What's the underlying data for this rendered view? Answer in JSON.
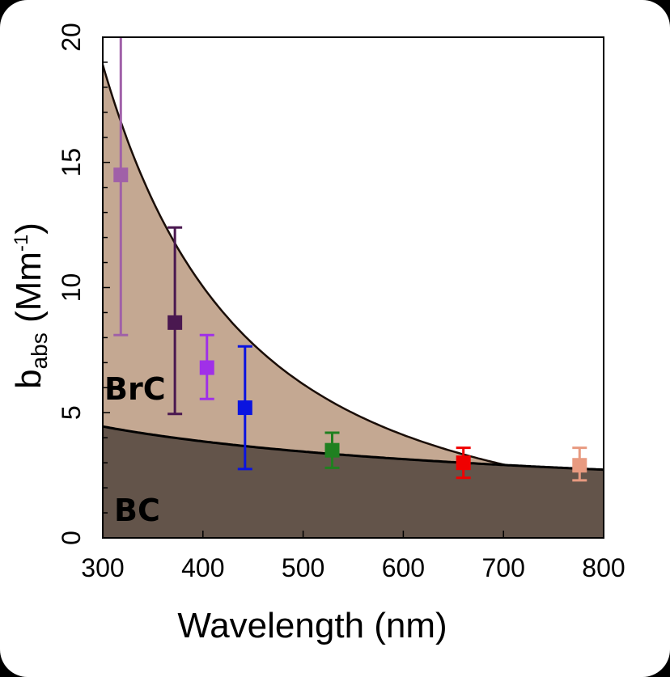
{
  "chart_data": {
    "type": "scatter",
    "xlabel": "Wavelength (nm)",
    "ylabel": {
      "base": "b",
      "sub": "abs",
      "unit_open": " (Mm",
      "sup": "-1",
      "unit_close": ")"
    },
    "xlim": [
      300,
      800
    ],
    "ylim": [
      0,
      20
    ],
    "x_ticks": [
      "300",
      "400",
      "500",
      "600",
      "700",
      "800"
    ],
    "y_ticks": [
      "0",
      "5",
      "10",
      "15",
      "20"
    ],
    "grid": false,
    "regions": [
      {
        "label": "BrC",
        "color": "#c4a892"
      },
      {
        "label": "BC",
        "color": "#63544a"
      }
    ],
    "bc_curve": {
      "ref_wavelength": 300,
      "ref_value": 4.45,
      "aae": 0.5
    },
    "total_curve": {
      "ref_wavelength": 300,
      "ref_value": 18.9,
      "aae": 2.2,
      "ref2_wavelength": 800,
      "ref2_value": 2.9
    },
    "points": [
      {
        "x": 318,
        "y": 14.5,
        "low": 8.1,
        "high": 20.5,
        "color": "#a060a8"
      },
      {
        "x": 372,
        "y": 8.6,
        "low": 4.95,
        "high": 12.4,
        "color": "#4a1850"
      },
      {
        "x": 404,
        "y": 6.8,
        "low": 5.55,
        "high": 8.1,
        "color": "#a030e8"
      },
      {
        "x": 442,
        "y": 5.2,
        "low": 2.75,
        "high": 7.65,
        "color": "#0a14e0"
      },
      {
        "x": 529,
        "y": 3.5,
        "low": 2.8,
        "high": 4.2,
        "color": "#208020"
      },
      {
        "x": 660,
        "y": 3.0,
        "low": 2.4,
        "high": 3.6,
        "color": "#f00000"
      },
      {
        "x": 776,
        "y": 2.9,
        "low": 2.3,
        "high": 3.6,
        "color": "#e89a80"
      }
    ]
  }
}
